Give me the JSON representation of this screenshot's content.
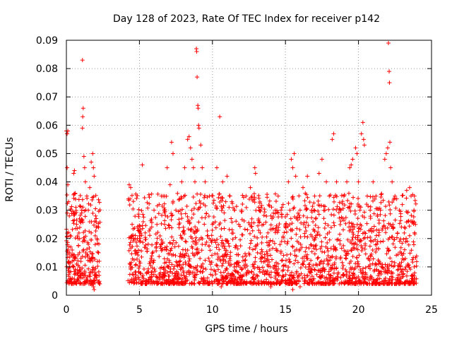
{
  "chart_data": {
    "type": "scatter",
    "title": "Day 128 of 2023, Rate Of TEC Index for receiver p142",
    "xlabel": "GPS time / hours",
    "ylabel": "ROTI / TECUs",
    "xlim": [
      0,
      25
    ],
    "ylim": [
      0,
      0.09
    ],
    "x_ticks": [
      0,
      5,
      10,
      15,
      20,
      25
    ],
    "x_tick_labels": [
      "0",
      "5",
      "10",
      "15",
      "20",
      "25"
    ],
    "y_ticks": [
      0,
      0.01,
      0.02,
      0.03,
      0.04,
      0.05,
      0.06,
      0.07,
      0.08,
      0.09
    ],
    "y_tick_labels": [
      "0",
      "0.01",
      "0.02",
      "0.03",
      "0.04",
      "0.05",
      "0.06",
      "0.07",
      "0.08",
      "0.09"
    ],
    "grid": true,
    "marker": "+",
    "color": "#ff0000",
    "data_gaps_hours": [
      [
        2.3,
        4.2
      ]
    ],
    "series": [
      {
        "points": [
          [
            0.0,
            0.058
          ],
          [
            0.05,
            0.057
          ],
          [
            0.1,
            0.058
          ],
          [
            0.05,
            0.045
          ],
          [
            0.1,
            0.039
          ],
          [
            0.15,
            0.033
          ],
          [
            0.2,
            0.028
          ],
          [
            0.25,
            0.021
          ],
          [
            0.3,
            0.017
          ],
          [
            0.35,
            0.014
          ],
          [
            0.4,
            0.012
          ],
          [
            0.5,
            0.01
          ],
          [
            0.6,
            0.009
          ],
          [
            0.7,
            0.011
          ],
          [
            0.5,
            0.043
          ],
          [
            0.55,
            0.044
          ],
          [
            0.6,
            0.036
          ],
          [
            0.65,
            0.031
          ],
          [
            0.7,
            0.025
          ],
          [
            0.8,
            0.02
          ],
          [
            0.9,
            0.015
          ],
          [
            1.0,
            0.013
          ],
          [
            1.05,
            0.03
          ],
          [
            1.1,
            0.083
          ],
          [
            1.15,
            0.066
          ],
          [
            1.12,
            0.063
          ],
          [
            1.1,
            0.059
          ],
          [
            1.2,
            0.049
          ],
          [
            1.25,
            0.045
          ],
          [
            1.3,
            0.04
          ],
          [
            1.4,
            0.035
          ],
          [
            1.5,
            0.03
          ],
          [
            1.6,
            0.038
          ],
          [
            1.7,
            0.047
          ],
          [
            1.8,
            0.05
          ],
          [
            1.85,
            0.045
          ],
          [
            1.9,
            0.042
          ],
          [
            2.0,
            0.028
          ],
          [
            2.1,
            0.02
          ],
          [
            2.2,
            0.015
          ],
          [
            2.25,
            0.012
          ],
          [
            1.9,
            0.009
          ],
          [
            1.6,
            0.008
          ],
          [
            1.3,
            0.007
          ],
          [
            1.0,
            0.006
          ],
          [
            0.8,
            0.007
          ],
          [
            0.4,
            0.006
          ],
          [
            0.2,
            0.008
          ],
          [
            1.8,
            0.004
          ],
          [
            1.85,
            0.003
          ],
          [
            1.9,
            0.002
          ],
          [
            1.5,
            0.018
          ],
          [
            1.7,
            0.022
          ],
          [
            2.05,
            0.024
          ],
          [
            0.9,
            0.027
          ],
          [
            0.3,
            0.03
          ],
          [
            4.3,
            0.039
          ],
          [
            4.4,
            0.038
          ],
          [
            4.5,
            0.025
          ],
          [
            4.6,
            0.02
          ],
          [
            4.8,
            0.015
          ],
          [
            5.0,
            0.012
          ],
          [
            5.2,
            0.046
          ],
          [
            5.4,
            0.022
          ],
          [
            5.6,
            0.018
          ],
          [
            5.8,
            0.013
          ],
          [
            6.0,
            0.03
          ],
          [
            6.2,
            0.025
          ],
          [
            6.5,
            0.035
          ],
          [
            6.7,
            0.03
          ],
          [
            6.9,
            0.045
          ],
          [
            7.1,
            0.039
          ],
          [
            7.2,
            0.054
          ],
          [
            7.3,
            0.05
          ],
          [
            7.5,
            0.03
          ],
          [
            7.7,
            0.025
          ],
          [
            7.9,
            0.04
          ],
          [
            8.1,
            0.045
          ],
          [
            8.3,
            0.055
          ],
          [
            8.4,
            0.056
          ],
          [
            8.5,
            0.052
          ],
          [
            8.6,
            0.048
          ],
          [
            8.7,
            0.045
          ],
          [
            8.8,
            0.04
          ],
          [
            8.9,
            0.087
          ],
          [
            8.92,
            0.086
          ],
          [
            8.95,
            0.077
          ],
          [
            9.0,
            0.067
          ],
          [
            9.02,
            0.066
          ],
          [
            9.05,
            0.06
          ],
          [
            9.08,
            0.059
          ],
          [
            9.2,
            0.053
          ],
          [
            9.3,
            0.045
          ],
          [
            9.5,
            0.04
          ],
          [
            9.8,
            0.035
          ],
          [
            10.0,
            0.025
          ],
          [
            10.3,
            0.045
          ],
          [
            10.5,
            0.063
          ],
          [
            10.7,
            0.04
          ],
          [
            11.0,
            0.042
          ],
          [
            11.2,
            0.035
          ],
          [
            11.5,
            0.03
          ],
          [
            11.8,
            0.025
          ],
          [
            12.0,
            0.03
          ],
          [
            12.3,
            0.035
          ],
          [
            12.6,
            0.038
          ],
          [
            12.9,
            0.045
          ],
          [
            12.95,
            0.043
          ],
          [
            13.2,
            0.03
          ],
          [
            13.5,
            0.025
          ],
          [
            13.8,
            0.022
          ],
          [
            14.0,
            0.028
          ],
          [
            14.3,
            0.03
          ],
          [
            14.5,
            0.035
          ],
          [
            14.7,
            0.03
          ],
          [
            15.0,
            0.025
          ],
          [
            15.2,
            0.04
          ],
          [
            15.4,
            0.048
          ],
          [
            15.5,
            0.045
          ],
          [
            15.6,
            0.05
          ],
          [
            15.7,
            0.042
          ],
          [
            16.0,
            0.03
          ],
          [
            16.2,
            0.038
          ],
          [
            16.5,
            0.042
          ],
          [
            16.8,
            0.03
          ],
          [
            17.0,
            0.035
          ],
          [
            17.3,
            0.043
          ],
          [
            17.5,
            0.048
          ],
          [
            17.7,
            0.03
          ],
          [
            17.8,
            0.04
          ],
          [
            18.0,
            0.035
          ],
          [
            18.2,
            0.055
          ],
          [
            18.3,
            0.057
          ],
          [
            18.5,
            0.04
          ],
          [
            18.8,
            0.03
          ],
          [
            19.0,
            0.035
          ],
          [
            19.2,
            0.04
          ],
          [
            19.4,
            0.045
          ],
          [
            19.5,
            0.046
          ],
          [
            19.6,
            0.048
          ],
          [
            19.8,
            0.052
          ],
          [
            19.9,
            0.05
          ],
          [
            20.0,
            0.04
          ],
          [
            20.1,
            0.03
          ],
          [
            20.2,
            0.057
          ],
          [
            20.3,
            0.061
          ],
          [
            20.35,
            0.055
          ],
          [
            20.4,
            0.053
          ],
          [
            20.6,
            0.035
          ],
          [
            20.8,
            0.03
          ],
          [
            21.0,
            0.04
          ],
          [
            21.2,
            0.035
          ],
          [
            21.5,
            0.03
          ],
          [
            21.8,
            0.048
          ],
          [
            21.9,
            0.05
          ],
          [
            22.0,
            0.052
          ],
          [
            22.05,
            0.089
          ],
          [
            22.1,
            0.079
          ],
          [
            22.12,
            0.075
          ],
          [
            22.15,
            0.054
          ],
          [
            22.2,
            0.045
          ],
          [
            22.3,
            0.04
          ],
          [
            22.5,
            0.035
          ],
          [
            22.8,
            0.03
          ],
          [
            23.0,
            0.032
          ],
          [
            23.3,
            0.037
          ],
          [
            23.5,
            0.038
          ],
          [
            23.6,
            0.035
          ],
          [
            23.8,
            0.03
          ],
          [
            23.9,
            0.025
          ],
          [
            10.6,
            0.003
          ],
          [
            12.0,
            0.004
          ],
          [
            14.0,
            0.003
          ],
          [
            15.5,
            0.002
          ],
          [
            16.0,
            0.003
          ],
          [
            17.3,
            0.004
          ],
          [
            18.0,
            0.004
          ],
          [
            19.5,
            0.005
          ],
          [
            21.0,
            0.005
          ],
          [
            23.5,
            0.004
          ],
          [
            5.5,
            0.004
          ],
          [
            8.0,
            0.004
          ]
        ]
      }
    ]
  }
}
